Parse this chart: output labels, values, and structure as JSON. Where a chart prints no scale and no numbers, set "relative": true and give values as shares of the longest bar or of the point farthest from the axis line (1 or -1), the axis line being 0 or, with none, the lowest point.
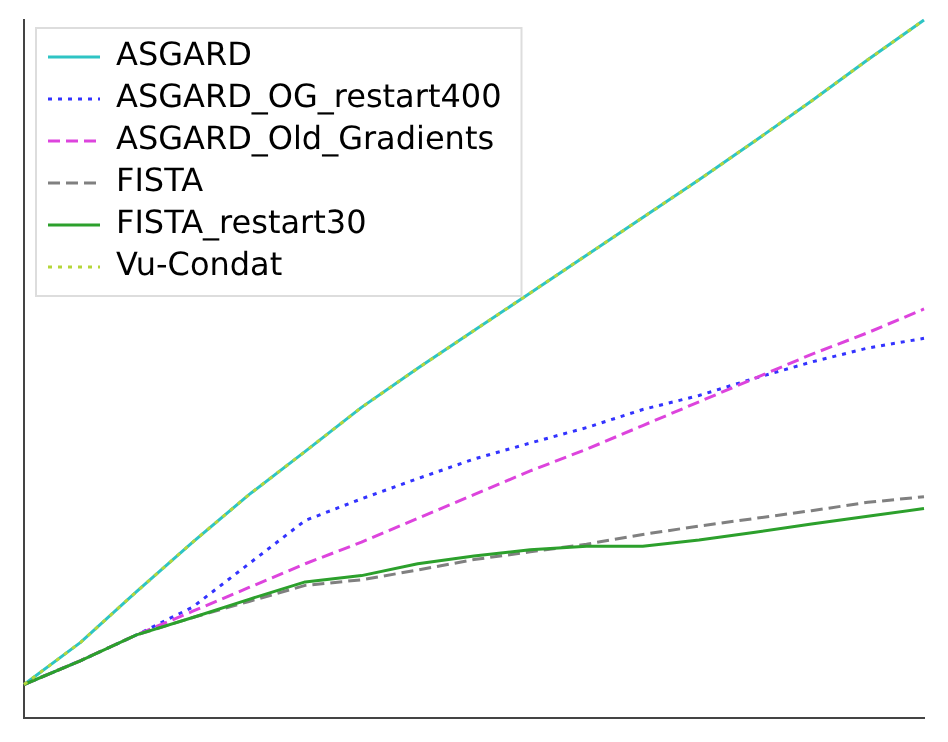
{
  "chart_data": {
    "type": "line",
    "relative": true,
    "legend": "top left",
    "grid": false,
    "marker": "none",
    "categories": [
      null,
      null,
      null,
      null,
      null,
      null,
      null,
      null,
      null,
      null,
      null,
      null,
      null,
      null,
      null,
      null,
      null
    ],
    "series": [
      {
        "name": "ASGARD",
        "color": "#2ec4c4",
        "line_style": "solid",
        "values": [
          0.048,
          0.108,
          0.181,
          0.252,
          0.32,
          0.382,
          0.445,
          0.501,
          0.555,
          0.609,
          0.663,
          0.717,
          0.771,
          0.827,
          0.884,
          0.943,
          1
        ]
      },
      {
        "name": "ASGARD_OG_restart400",
        "color": "#3333ff",
        "line_style": "dotted",
        "values": [
          0.048,
          0.082,
          0.119,
          0.159,
          0.221,
          0.283,
          0.314,
          0.343,
          0.371,
          0.394,
          0.416,
          0.442,
          0.462,
          0.487,
          0.51,
          0.53,
          0.544
        ]
      },
      {
        "name": "ASGARD_Old_Gradients",
        "color": "#dd44dd",
        "line_style": "dashed",
        "values": [
          0.048,
          0.082,
          0.119,
          0.153,
          0.187,
          0.221,
          0.252,
          0.286,
          0.32,
          0.354,
          0.385,
          0.419,
          0.453,
          0.487,
          0.521,
          0.552,
          0.586
        ]
      },
      {
        "name": "FISTA",
        "color": "#808080",
        "line_style": "dashed",
        "values": [
          0.048,
          0.082,
          0.119,
          0.144,
          0.167,
          0.19,
          0.198,
          0.212,
          0.227,
          0.238,
          0.249,
          0.263,
          0.275,
          0.286,
          0.297,
          0.309,
          0.317
        ]
      },
      {
        "name": "FISTA_restart30",
        "color": "#2ca02c",
        "line_style": "solid",
        "values": [
          0.048,
          0.082,
          0.119,
          0.144,
          0.17,
          0.195,
          0.204,
          0.221,
          0.232,
          0.241,
          0.246,
          0.246,
          0.255,
          0.266,
          0.278,
          0.289,
          0.3
        ]
      },
      {
        "name": "Vu-Condat",
        "color": "#b5d63a",
        "line_style": "dotted",
        "values": [
          0.048,
          0.108,
          0.181,
          0.252,
          0.32,
          0.382,
          0.445,
          0.501,
          0.555,
          0.609,
          0.663,
          0.717,
          0.771,
          0.827,
          0.884,
          0.943,
          1
        ]
      }
    ]
  }
}
